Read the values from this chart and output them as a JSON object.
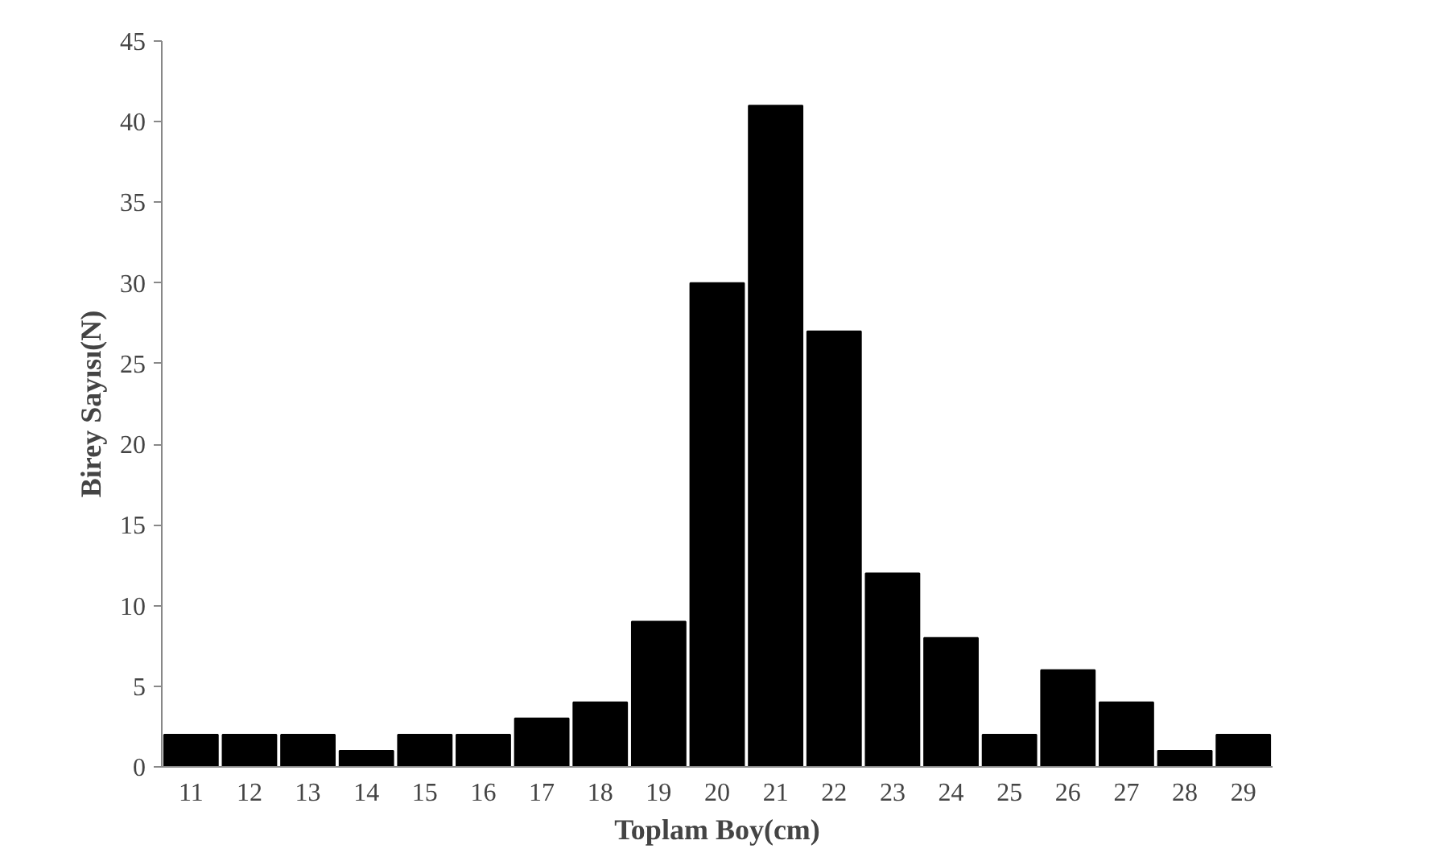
{
  "chart_data": {
    "type": "bar",
    "xlabel": "Toplam Boy(cm)",
    "ylabel": "Birey Sayısı(N)",
    "categories": [
      "11",
      "12",
      "13",
      "14",
      "15",
      "16",
      "17",
      "18",
      "19",
      "20",
      "21",
      "22",
      "23",
      "24",
      "25",
      "26",
      "27",
      "28",
      "29"
    ],
    "values": [
      2,
      2,
      2,
      1,
      2,
      2,
      3,
      4,
      9,
      30,
      41,
      27,
      12,
      8,
      2,
      6,
      4,
      1,
      2
    ],
    "color": "#000000",
    "ylim": [
      0,
      45
    ],
    "yticks": [
      0,
      5,
      10,
      15,
      20,
      25,
      30,
      35,
      40,
      45
    ],
    "grid": false
  }
}
